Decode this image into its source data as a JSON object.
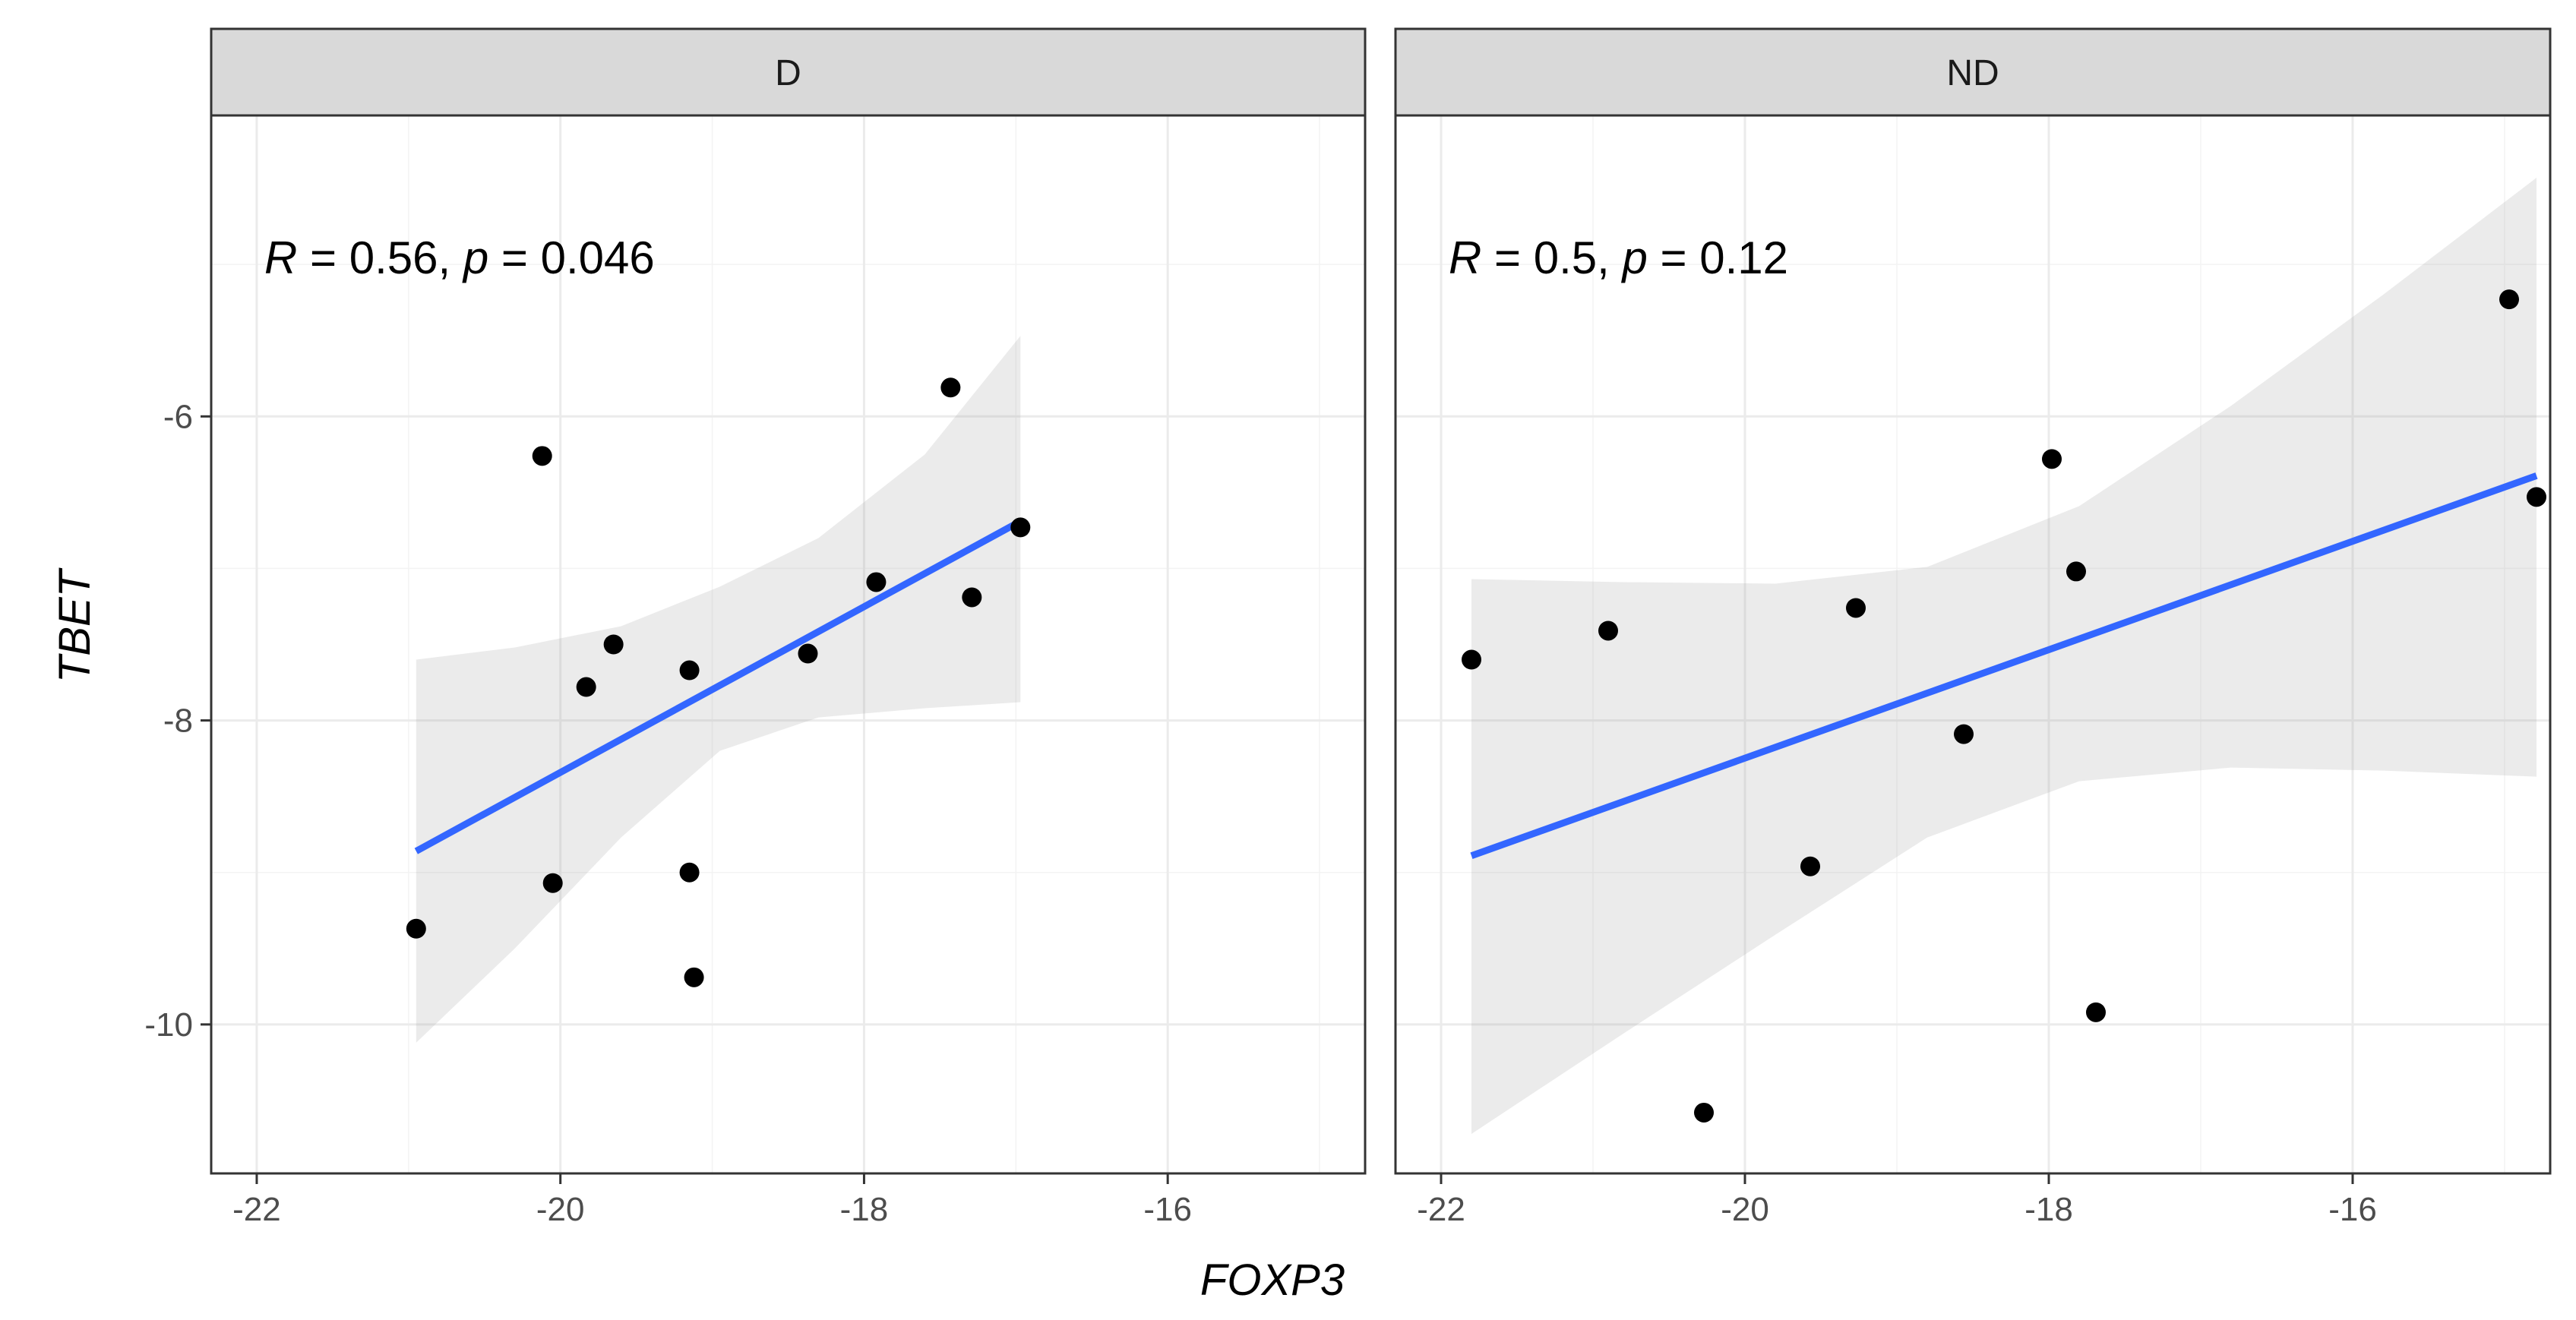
{
  "chart_data": {
    "type": "scatter",
    "facet_by": "group",
    "xlabel": "FOXP3",
    "ylabel": "TBET",
    "xlim": [
      -22.3,
      -14.7
    ],
    "ylim": [
      -10.98,
      -4.02
    ],
    "x_ticks": [
      -22,
      -20,
      -18,
      -16
    ],
    "x_tick_labels": [
      "-22",
      "-20",
      "-18",
      "-16"
    ],
    "y_ticks": [
      -10,
      -8,
      -6
    ],
    "y_tick_labels": [
      "-10",
      "-8",
      "-6"
    ],
    "panels": [
      {
        "name": "D",
        "annotation": {
          "r_symbol": "R",
          "r_text": " = 0.56, ",
          "p_symbol": "p",
          "p_text": " = 0.046"
        },
        "points": [
          {
            "x": -20.95,
            "y": -9.37
          },
          {
            "x": -20.12,
            "y": -6.26
          },
          {
            "x": -20.05,
            "y": -9.07
          },
          {
            "x": -19.83,
            "y": -7.78
          },
          {
            "x": -19.65,
            "y": -7.5
          },
          {
            "x": -19.15,
            "y": -7.67
          },
          {
            "x": -19.15,
            "y": -9.0
          },
          {
            "x": -19.12,
            "y": -9.69
          },
          {
            "x": -18.37,
            "y": -7.56
          },
          {
            "x": -17.92,
            "y": -7.09
          },
          {
            "x": -17.43,
            "y": -5.81
          },
          {
            "x": -17.29,
            "y": -7.19
          },
          {
            "x": -16.97,
            "y": -6.73
          }
        ],
        "fit": {
          "x": [
            -20.95,
            -16.97
          ],
          "y": [
            -8.86,
            -6.69
          ]
        },
        "ci": {
          "x": [
            -20.95,
            -20.3,
            -19.6,
            -18.95,
            -18.3,
            -17.6,
            -16.97
          ],
          "upper": [
            -7.6,
            -7.52,
            -7.38,
            -7.12,
            -6.8,
            -6.25,
            -5.47
          ],
          "lower": [
            -10.12,
            -9.5,
            -8.77,
            -8.2,
            -7.98,
            -7.92,
            -7.88
          ]
        }
      },
      {
        "name": "ND",
        "annotation": {
          "r_symbol": "R",
          "r_text": " = 0.5, ",
          "p_symbol": "p",
          "p_text": " = 0.12"
        },
        "points": [
          {
            "x": -21.8,
            "y": -7.6
          },
          {
            "x": -20.9,
            "y": -7.41
          },
          {
            "x": -20.27,
            "y": -10.58
          },
          {
            "x": -19.57,
            "y": -8.96
          },
          {
            "x": -19.27,
            "y": -7.26
          },
          {
            "x": -18.56,
            "y": -8.09
          },
          {
            "x": -17.98,
            "y": -6.28
          },
          {
            "x": -17.82,
            "y": -7.02
          },
          {
            "x": -17.69,
            "y": -9.92
          },
          {
            "x": -14.97,
            "y": -5.23
          },
          {
            "x": -14.79,
            "y": -6.53
          }
        ],
        "fit": {
          "x": [
            -21.8,
            -14.79
          ],
          "y": [
            -8.89,
            -6.39
          ]
        },
        "ci": {
          "x": [
            -21.8,
            -20.8,
            -19.8,
            -18.8,
            -17.8,
            -16.8,
            -15.8,
            -14.79
          ],
          "upper": [
            -7.07,
            -7.09,
            -7.1,
            -6.99,
            -6.59,
            -5.93,
            -5.2,
            -4.43
          ],
          "lower": [
            -10.72,
            -10.06,
            -9.41,
            -8.77,
            -8.4,
            -8.31,
            -8.33,
            -8.37
          ]
        }
      }
    ]
  }
}
